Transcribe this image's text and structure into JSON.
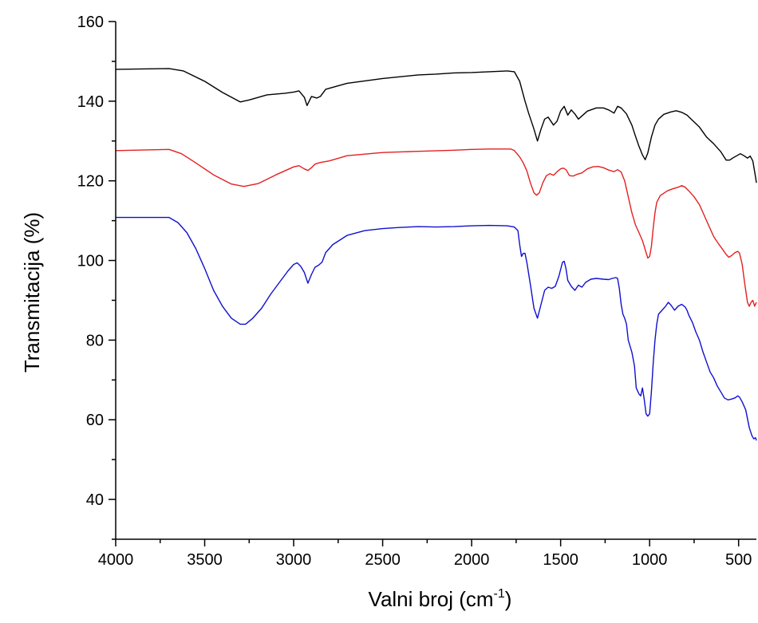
{
  "chart_data": {
    "type": "line",
    "title": "",
    "xlabel": {
      "prefix": "Valni broj (cm",
      "superscript": "-1",
      "suffix": ")"
    },
    "ylabel": "Transmitacija (%)",
    "xlim": [
      4000,
      400
    ],
    "ylim": [
      30,
      160
    ],
    "x_ticks": [
      "4000",
      "3500",
      "3000",
      "2500",
      "2000",
      "1500",
      "1000",
      "500"
    ],
    "y_ticks": [
      "40",
      "60",
      "80",
      "100",
      "120",
      "140",
      "160"
    ],
    "x_tick_values": [
      4000,
      3500,
      3000,
      2500,
      2000,
      1500,
      1000,
      500
    ],
    "y_tick_values": [
      40,
      60,
      80,
      100,
      120,
      140,
      160
    ],
    "grid": false,
    "legend": "none",
    "series": [
      {
        "color": "#000000",
        "points": [
          [
            4000,
            148
          ],
          [
            3700,
            148.2
          ],
          [
            3620,
            147.6
          ],
          [
            3500,
            145
          ],
          [
            3400,
            142.2
          ],
          [
            3300,
            139.8
          ],
          [
            3250,
            140.3
          ],
          [
            3150,
            141.6
          ],
          [
            3050,
            142
          ],
          [
            3000,
            142.3
          ],
          [
            2970,
            142.6
          ],
          [
            2940,
            141
          ],
          [
            2925,
            138.9
          ],
          [
            2900,
            141.2
          ],
          [
            2870,
            140.8
          ],
          [
            2850,
            141.2
          ],
          [
            2820,
            143
          ],
          [
            2700,
            144.5
          ],
          [
            2500,
            145.7
          ],
          [
            2300,
            146.6
          ],
          [
            2200,
            146.8
          ],
          [
            2100,
            147.1
          ],
          [
            2000,
            147.2
          ],
          [
            1900,
            147.4
          ],
          [
            1800,
            147.6
          ],
          [
            1760,
            147.4
          ],
          [
            1730,
            145
          ],
          [
            1700,
            140
          ],
          [
            1680,
            137
          ],
          [
            1650,
            133
          ],
          [
            1630,
            130
          ],
          [
            1610,
            133
          ],
          [
            1590,
            135.5
          ],
          [
            1570,
            136
          ],
          [
            1540,
            134
          ],
          [
            1520,
            135
          ],
          [
            1500,
            137.5
          ],
          [
            1480,
            138.7
          ],
          [
            1460,
            136.5
          ],
          [
            1440,
            137.8
          ],
          [
            1420,
            136.8
          ],
          [
            1400,
            135.5
          ],
          [
            1380,
            136.3
          ],
          [
            1350,
            137.5
          ],
          [
            1300,
            138.3
          ],
          [
            1260,
            138.3
          ],
          [
            1230,
            137.8
          ],
          [
            1200,
            137
          ],
          [
            1180,
            138.7
          ],
          [
            1160,
            138.3
          ],
          [
            1130,
            136.8
          ],
          [
            1100,
            134
          ],
          [
            1080,
            131.3
          ],
          [
            1060,
            128.7
          ],
          [
            1040,
            126.5
          ],
          [
            1025,
            125.3
          ],
          [
            1010,
            127
          ],
          [
            990,
            131
          ],
          [
            970,
            134
          ],
          [
            950,
            135.5
          ],
          [
            920,
            136.7
          ],
          [
            880,
            137.3
          ],
          [
            850,
            137.6
          ],
          [
            820,
            137.2
          ],
          [
            790,
            136.5
          ],
          [
            760,
            135.2
          ],
          [
            720,
            133.5
          ],
          [
            680,
            131
          ],
          [
            640,
            129.3
          ],
          [
            600,
            127.3
          ],
          [
            570,
            125.2
          ],
          [
            550,
            125.2
          ],
          [
            530,
            125.8
          ],
          [
            510,
            126.3
          ],
          [
            490,
            126.8
          ],
          [
            470,
            126.3
          ],
          [
            450,
            125.7
          ],
          [
            435,
            126.2
          ],
          [
            420,
            125
          ],
          [
            405,
            121
          ],
          [
            400,
            119.5
          ]
        ]
      },
      {
        "color": "#e32020",
        "points": [
          [
            4000,
            127.6
          ],
          [
            3700,
            127.9
          ],
          [
            3630,
            126.8
          ],
          [
            3550,
            124.5
          ],
          [
            3450,
            121.5
          ],
          [
            3350,
            119.2
          ],
          [
            3280,
            118.6
          ],
          [
            3200,
            119.3
          ],
          [
            3100,
            121.5
          ],
          [
            3000,
            123.5
          ],
          [
            2970,
            123.8
          ],
          [
            2940,
            123
          ],
          [
            2920,
            122.6
          ],
          [
            2900,
            123.3
          ],
          [
            2880,
            124.2
          ],
          [
            2850,
            124.6
          ],
          [
            2800,
            125
          ],
          [
            2700,
            126.3
          ],
          [
            2500,
            127.1
          ],
          [
            2300,
            127.4
          ],
          [
            2100,
            127.7
          ],
          [
            2000,
            127.9
          ],
          [
            1900,
            128
          ],
          [
            1780,
            128
          ],
          [
            1760,
            127.6
          ],
          [
            1730,
            126
          ],
          [
            1710,
            124.5
          ],
          [
            1690,
            122.5
          ],
          [
            1670,
            119.5
          ],
          [
            1650,
            117
          ],
          [
            1635,
            116.4
          ],
          [
            1620,
            117
          ],
          [
            1600,
            119.5
          ],
          [
            1580,
            121.3
          ],
          [
            1560,
            121.8
          ],
          [
            1540,
            121.4
          ],
          [
            1520,
            122.3
          ],
          [
            1500,
            123
          ],
          [
            1485,
            123.2
          ],
          [
            1470,
            122.8
          ],
          [
            1450,
            121.3
          ],
          [
            1430,
            121.2
          ],
          [
            1410,
            121.6
          ],
          [
            1380,
            122
          ],
          [
            1350,
            123
          ],
          [
            1320,
            123.5
          ],
          [
            1290,
            123.6
          ],
          [
            1260,
            123.3
          ],
          [
            1230,
            122.7
          ],
          [
            1200,
            122.3
          ],
          [
            1180,
            122.8
          ],
          [
            1160,
            122.2
          ],
          [
            1140,
            120
          ],
          [
            1120,
            116
          ],
          [
            1100,
            112
          ],
          [
            1080,
            109
          ],
          [
            1060,
            107
          ],
          [
            1040,
            105
          ],
          [
            1020,
            102
          ],
          [
            1010,
            100.6
          ],
          [
            1000,
            101
          ],
          [
            990,
            103.5
          ],
          [
            980,
            108
          ],
          [
            970,
            112
          ],
          [
            960,
            114.6
          ],
          [
            940,
            116.3
          ],
          [
            900,
            117.5
          ],
          [
            870,
            118
          ],
          [
            840,
            118.4
          ],
          [
            820,
            118.8
          ],
          [
            800,
            118.4
          ],
          [
            780,
            117.5
          ],
          [
            750,
            116
          ],
          [
            720,
            114
          ],
          [
            700,
            112
          ],
          [
            680,
            110
          ],
          [
            660,
            108
          ],
          [
            640,
            106
          ],
          [
            610,
            104
          ],
          [
            590,
            102.8
          ],
          [
            570,
            101.5
          ],
          [
            555,
            100.8
          ],
          [
            540,
            101.2
          ],
          [
            520,
            102
          ],
          [
            505,
            102.3
          ],
          [
            495,
            101.9
          ],
          [
            480,
            99
          ],
          [
            465,
            94
          ],
          [
            450,
            89.5
          ],
          [
            440,
            88.5
          ],
          [
            430,
            89.5
          ],
          [
            420,
            90
          ],
          [
            410,
            88.5
          ],
          [
            400,
            89.5
          ]
        ]
      },
      {
        "color": "#1010d0",
        "points": [
          [
            4000,
            110.8
          ],
          [
            3700,
            110.8
          ],
          [
            3650,
            109.5
          ],
          [
            3600,
            107
          ],
          [
            3550,
            103
          ],
          [
            3500,
            98
          ],
          [
            3450,
            92.5
          ],
          [
            3400,
            88.5
          ],
          [
            3350,
            85.5
          ],
          [
            3300,
            84
          ],
          [
            3270,
            84
          ],
          [
            3230,
            85.5
          ],
          [
            3180,
            88
          ],
          [
            3130,
            91.5
          ],
          [
            3080,
            94.5
          ],
          [
            3030,
            97.5
          ],
          [
            3000,
            99
          ],
          [
            2980,
            99.4
          ],
          [
            2960,
            98.5
          ],
          [
            2940,
            97
          ],
          [
            2920,
            94.3
          ],
          [
            2900,
            96.5
          ],
          [
            2880,
            98.3
          ],
          [
            2860,
            98.8
          ],
          [
            2840,
            99.6
          ],
          [
            2820,
            102
          ],
          [
            2780,
            104
          ],
          [
            2700,
            106.3
          ],
          [
            2600,
            107.5
          ],
          [
            2500,
            108
          ],
          [
            2400,
            108.3
          ],
          [
            2300,
            108.5
          ],
          [
            2200,
            108.4
          ],
          [
            2100,
            108.5
          ],
          [
            2000,
            108.7
          ],
          [
            1900,
            108.8
          ],
          [
            1800,
            108.7
          ],
          [
            1760,
            108.4
          ],
          [
            1740,
            107.5
          ],
          [
            1730,
            104
          ],
          [
            1720,
            101
          ],
          [
            1710,
            101.8
          ],
          [
            1700,
            101.8
          ],
          [
            1690,
            99.5
          ],
          [
            1670,
            94
          ],
          [
            1650,
            88
          ],
          [
            1630,
            85.5
          ],
          [
            1610,
            89
          ],
          [
            1590,
            92.5
          ],
          [
            1570,
            93.3
          ],
          [
            1550,
            93
          ],
          [
            1530,
            93.5
          ],
          [
            1510,
            96
          ],
          [
            1490,
            99.5
          ],
          [
            1480,
            99.8
          ],
          [
            1470,
            98
          ],
          [
            1460,
            95
          ],
          [
            1440,
            93.5
          ],
          [
            1420,
            92.5
          ],
          [
            1400,
            93.8
          ],
          [
            1380,
            93.3
          ],
          [
            1360,
            94.5
          ],
          [
            1330,
            95.3
          ],
          [
            1300,
            95.5
          ],
          [
            1260,
            95.3
          ],
          [
            1230,
            95.2
          ],
          [
            1210,
            95.5
          ],
          [
            1190,
            95.7
          ],
          [
            1180,
            95.5
          ],
          [
            1170,
            93
          ],
          [
            1160,
            89
          ],
          [
            1150,
            86.5
          ],
          [
            1140,
            85.5
          ],
          [
            1130,
            84
          ],
          [
            1120,
            80
          ],
          [
            1100,
            77
          ],
          [
            1085,
            73.5
          ],
          [
            1075,
            68
          ],
          [
            1060,
            66.5
          ],
          [
            1050,
            66
          ],
          [
            1040,
            68
          ],
          [
            1030,
            65
          ],
          [
            1020,
            61.5
          ],
          [
            1010,
            60.9
          ],
          [
            1000,
            61.5
          ],
          [
            990,
            67
          ],
          [
            980,
            74
          ],
          [
            970,
            80
          ],
          [
            960,
            84
          ],
          [
            950,
            86.5
          ],
          [
            930,
            87.5
          ],
          [
            910,
            88.5
          ],
          [
            895,
            89.5
          ],
          [
            880,
            88.8
          ],
          [
            860,
            87.5
          ],
          [
            840,
            88.5
          ],
          [
            820,
            89
          ],
          [
            800,
            88.3
          ],
          [
            790,
            87.5
          ],
          [
            780,
            86.3
          ],
          [
            760,
            84.5
          ],
          [
            740,
            82
          ],
          [
            720,
            80
          ],
          [
            700,
            77
          ],
          [
            680,
            74.5
          ],
          [
            660,
            72
          ],
          [
            640,
            70.5
          ],
          [
            620,
            68.5
          ],
          [
            600,
            67
          ],
          [
            580,
            65.5
          ],
          [
            560,
            65
          ],
          [
            540,
            65.2
          ],
          [
            520,
            65.5
          ],
          [
            505,
            66
          ],
          [
            495,
            65.7
          ],
          [
            480,
            64.5
          ],
          [
            460,
            62.5
          ],
          [
            440,
            58
          ],
          [
            425,
            56
          ],
          [
            415,
            55.2
          ],
          [
            405,
            55.5
          ],
          [
            400,
            54.8
          ]
        ]
      }
    ]
  }
}
